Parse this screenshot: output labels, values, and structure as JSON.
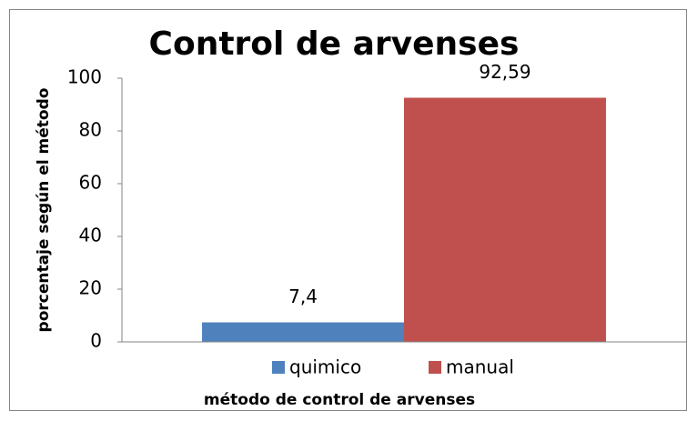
{
  "chart_data": {
    "type": "bar",
    "title": "Control de arvenses",
    "xlabel": "método de control de arvenses",
    "ylabel": "porcentaje según el método",
    "categories": [
      null
    ],
    "series": [
      {
        "name": "quimico",
        "color": "#4f81bd",
        "values": [
          7.4
        ],
        "value_labels": [
          "7,4"
        ]
      },
      {
        "name": "manual",
        "color": "#c0504d",
        "values": [
          92.59
        ],
        "value_labels": [
          "92,59"
        ]
      }
    ],
    "ylim": [
      0,
      100
    ],
    "yticks": [
      0,
      20,
      40,
      60,
      80,
      100
    ],
    "grid": false,
    "legend": "bottom"
  }
}
